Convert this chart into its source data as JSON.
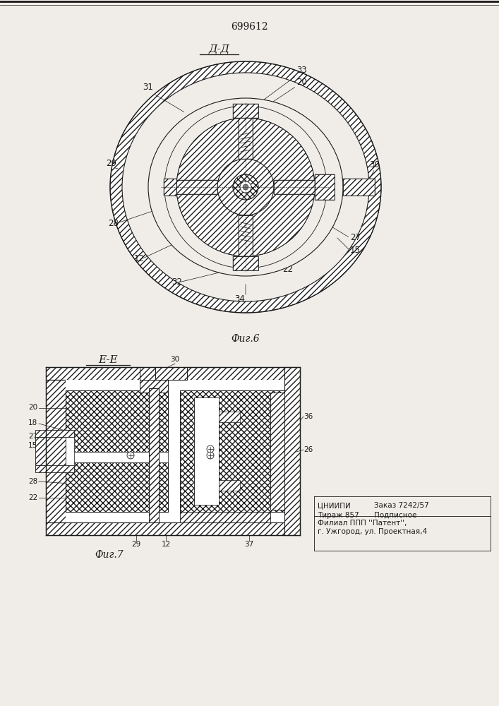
{
  "patent_number": "699612",
  "fig6_label": "Д-Д",
  "fig6_caption": "Фиг.6",
  "fig7_label": "E-E",
  "fig7_caption": "Фиг.7",
  "bg_color": "#f0ede8",
  "line_color": "#1a1a1a"
}
